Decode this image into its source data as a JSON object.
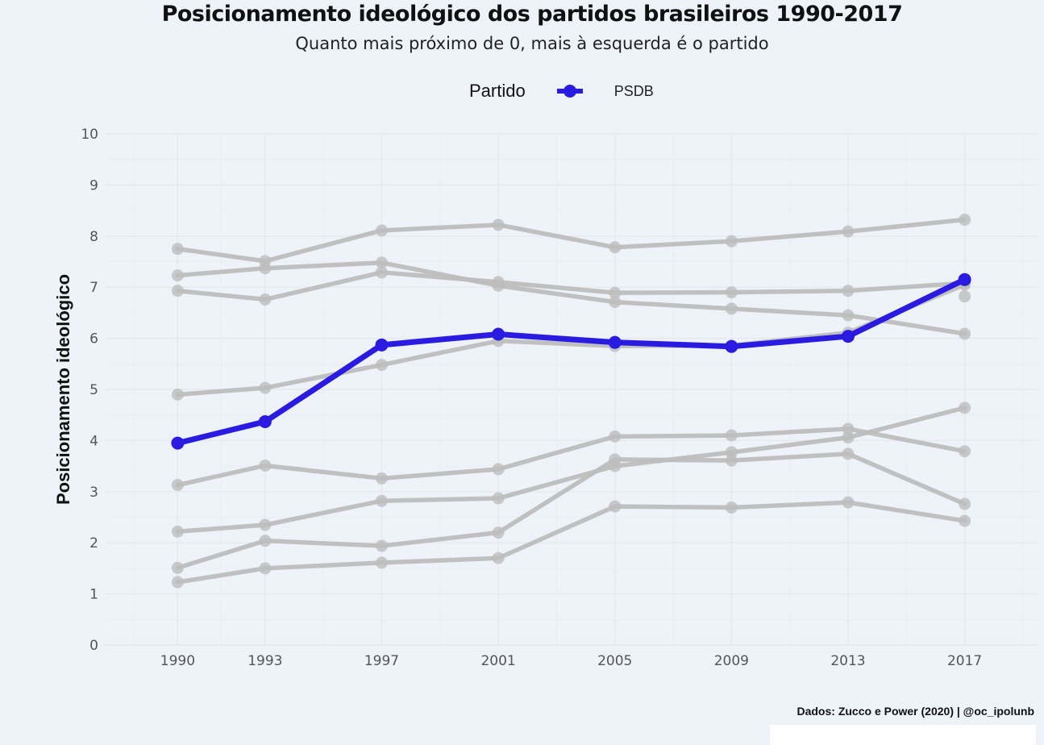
{
  "chart_data": {
    "type": "line",
    "title": "Posicionamento ideológico dos partidos brasileiros 1990-2017",
    "subtitle": "Quanto mais próximo de 0, mais à esquerda é o partido",
    "ylabel": "Posicionamento ideológico",
    "xlabel": "",
    "legend_title": "Partido",
    "legend_position": "top",
    "x": [
      1990,
      1993,
      1997,
      2001,
      2005,
      2009,
      2013,
      2017
    ],
    "x_tick_labels": [
      "1990",
      "1993",
      "1997",
      "2001",
      "2005",
      "2009",
      "2013",
      "2017"
    ],
    "xlim": [
      1987.5,
      2019.5
    ],
    "ylim": [
      0,
      10
    ],
    "y_ticks": [
      "0",
      "1",
      "2",
      "3",
      "4",
      "5",
      "6",
      "7",
      "8",
      "9",
      "10"
    ],
    "grid": true,
    "highlight_color": "#2a1be0",
    "background_color": "#eef3fa",
    "series": [
      {
        "name": "PSDB",
        "highlight": true,
        "values": [
          3.95,
          4.37,
          5.87,
          6.08,
          5.92,
          5.84,
          6.04,
          7.15
        ]
      },
      {
        "values": [
          7.75,
          7.51,
          8.11,
          8.22,
          7.78,
          7.9,
          8.09,
          8.32
        ]
      },
      {
        "values": [
          7.23,
          7.37,
          7.48,
          7.03,
          6.71,
          6.58,
          6.45,
          6.09
        ]
      },
      {
        "values": [
          6.93,
          6.76,
          7.29,
          7.1,
          6.89,
          6.9,
          6.93,
          7.08
        ]
      },
      {
        "values": [
          null,
          null,
          null,
          null,
          null,
          null,
          null,
          6.82
        ]
      },
      {
        "values": [
          4.9,
          5.03,
          5.48,
          5.95,
          5.85,
          5.86,
          6.11,
          7.05
        ]
      },
      {
        "values": [
          3.13,
          3.51,
          3.26,
          3.44,
          4.08,
          4.1,
          4.23,
          3.79
        ]
      },
      {
        "values": [
          2.22,
          2.35,
          2.82,
          2.87,
          3.5,
          3.77,
          4.06,
          4.64
        ]
      },
      {
        "values": [
          1.51,
          2.04,
          1.94,
          2.2,
          3.63,
          3.61,
          3.74,
          2.76
        ]
      },
      {
        "values": [
          1.23,
          1.5,
          1.61,
          1.7,
          2.71,
          2.69,
          2.79,
          2.43
        ]
      }
    ]
  },
  "caption": "Dados: Zucco e Power (2020) | @oc_ipolunb"
}
